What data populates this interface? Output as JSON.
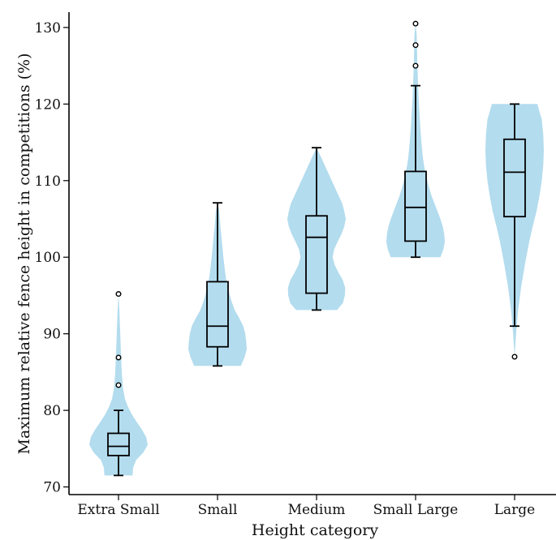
{
  "chart_data": {
    "type": "violin-box",
    "xlabel": "Height category",
    "ylabel": "Maximum relative fence height in competitions (%)",
    "ylim": [
      69,
      132
    ],
    "yticks": [
      70,
      80,
      90,
      100,
      110,
      120,
      130
    ],
    "grid": false,
    "legend": "none",
    "violin_color": "#b3dcee",
    "categories": [
      "Extra Small",
      "Small",
      "Medium",
      "Small Large",
      "Large"
    ],
    "series": [
      {
        "category": "Extra Small",
        "whisker_low": 71.5,
        "q1": 74.1,
        "median": 75.3,
        "q3": 77.0,
        "whisker_high": 80.0,
        "outliers": [
          83.3,
          86.9,
          95.2
        ],
        "violin": {
          "y": [
            71.5,
            72.5,
            73.5,
            74.5,
            75.5,
            76.5,
            77.5,
            78.5,
            79.5,
            80.5,
            81.5,
            83,
            85,
            87,
            89,
            91,
            93,
            95.2
          ],
          "width": [
            0.48,
            0.5,
            0.6,
            0.85,
            1.0,
            0.95,
            0.8,
            0.62,
            0.45,
            0.32,
            0.22,
            0.15,
            0.11,
            0.09,
            0.07,
            0.05,
            0.03,
            0.0
          ]
        }
      },
      {
        "category": "Small",
        "whisker_low": 85.8,
        "q1": 88.3,
        "median": 91.0,
        "q3": 96.8,
        "whisker_high": 107.1,
        "outliers": [],
        "violin": {
          "y": [
            85.8,
            87,
            88,
            89,
            90,
            91,
            92,
            93,
            94,
            95,
            96,
            97,
            98,
            100,
            102,
            104,
            106,
            107.1
          ],
          "width": [
            0.8,
            0.93,
            1.0,
            0.98,
            0.95,
            0.88,
            0.75,
            0.6,
            0.5,
            0.42,
            0.36,
            0.3,
            0.26,
            0.2,
            0.15,
            0.1,
            0.06,
            0.0
          ]
        }
      },
      {
        "category": "Medium",
        "whisker_low": 93.1,
        "q1": 95.3,
        "median": 102.6,
        "q3": 105.4,
        "whisker_high": 114.3,
        "outliers": [],
        "violin": {
          "y": [
            93.1,
            94,
            95,
            96,
            97,
            98,
            99,
            100,
            101,
            102,
            103,
            104,
            105,
            106,
            107,
            108,
            109,
            110,
            111,
            112,
            113,
            114.3
          ],
          "width": [
            0.7,
            0.9,
            0.97,
            0.98,
            0.9,
            0.75,
            0.62,
            0.55,
            0.6,
            0.72,
            0.85,
            0.95,
            1.0,
            0.95,
            0.88,
            0.76,
            0.64,
            0.52,
            0.4,
            0.28,
            0.16,
            0.0
          ]
        }
      },
      {
        "category": "Small Large",
        "whisker_low": 100.0,
        "q1": 102.1,
        "median": 106.5,
        "q3": 111.2,
        "whisker_high": 122.4,
        "outliers": [
          125.0,
          127.7,
          130.5
        ],
        "violin": {
          "y": [
            100.0,
            101,
            102,
            103,
            104,
            105,
            106,
            107,
            108,
            109,
            110,
            111,
            112,
            113,
            115,
            117,
            119,
            121,
            123,
            125,
            127,
            129,
            130.5
          ],
          "width": [
            0.85,
            0.95,
            1.0,
            0.98,
            0.93,
            0.85,
            0.75,
            0.65,
            0.55,
            0.47,
            0.4,
            0.34,
            0.29,
            0.25,
            0.2,
            0.16,
            0.13,
            0.1,
            0.08,
            0.06,
            0.05,
            0.04,
            0.0
          ]
        }
      },
      {
        "category": "Large",
        "whisker_low": 91.0,
        "q1": 105.3,
        "median": 111.1,
        "q3": 115.4,
        "whisker_high": 120.0,
        "outliers": [
          87.0
        ],
        "violin": {
          "y": [
            87.0,
            90,
            93,
            96,
            99,
            102,
            104,
            106,
            108,
            110,
            112,
            114,
            116,
            118,
            119,
            120.0
          ],
          "width": [
            0.0,
            0.05,
            0.12,
            0.22,
            0.35,
            0.5,
            0.62,
            0.75,
            0.85,
            0.93,
            0.98,
            1.0,
            0.98,
            0.93,
            0.85,
            0.78
          ]
        }
      }
    ]
  }
}
